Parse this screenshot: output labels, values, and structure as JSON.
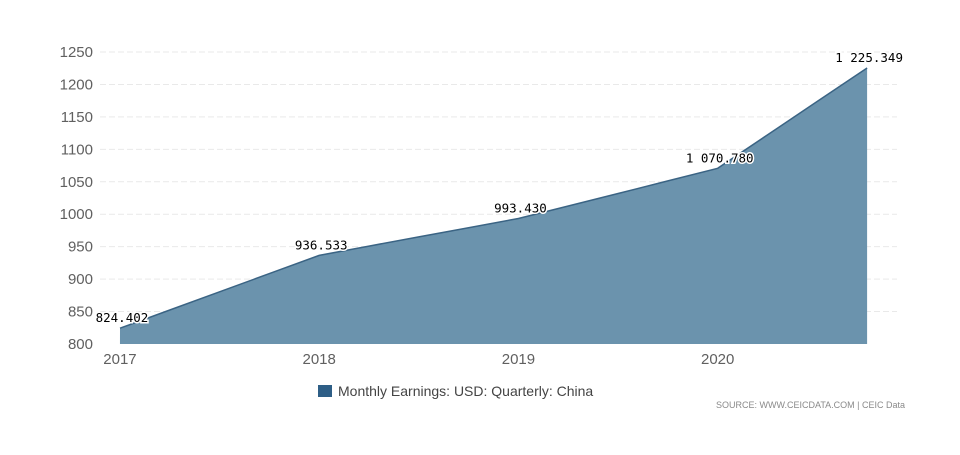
{
  "chart_data": {
    "type": "area",
    "x": [
      2017.0,
      2017.25,
      2017.5,
      2017.75,
      2018.0,
      2018.25,
      2018.5,
      2018.75,
      2019.0,
      2019.25,
      2019.5,
      2019.75,
      2020.0,
      2020.25,
      2020.5,
      2020.75
    ],
    "series": [
      {
        "name": "Monthly Earnings: USD: Quarterly: China",
        "values": [
          824.402,
          852.4,
          880.4,
          908.5,
          936.533,
          950.8,
          965.0,
          979.2,
          993.43,
          1012.7,
          1032.0,
          1051.4,
          1070.78,
          1122.3,
          1173.8,
          1225.349
        ]
      }
    ],
    "labeled_points": [
      {
        "x": 2017.0,
        "label": "824.402"
      },
      {
        "x": 2018.0,
        "label": "936.533"
      },
      {
        "x": 2019.0,
        "label": "993.430"
      },
      {
        "x": 2020.0,
        "label": "1 070.780"
      },
      {
        "x": 2020.75,
        "label": "1 225.349"
      }
    ],
    "xticks": [
      "2017",
      "2018",
      "2019",
      "2020"
    ],
    "yticks": [
      "800",
      "850",
      "900",
      "950",
      "1000",
      "1050",
      "1100",
      "1150",
      "1200",
      "1250"
    ],
    "ylim": [
      800,
      1250
    ],
    "xlim": [
      2016.95,
      2020.9
    ],
    "grid": "horizontal",
    "legend_position": "bottom-center",
    "colors": {
      "fill": "#6b93ad",
      "line": "#3b6484",
      "legend": "#2e5e86",
      "grid": "#e9e9e9"
    }
  },
  "legend": {
    "label": "Monthly Earnings: USD: Quarterly: China"
  },
  "source": {
    "text": "SOURCE: WWW.CEICDATA.COM | CEIC Data"
  }
}
